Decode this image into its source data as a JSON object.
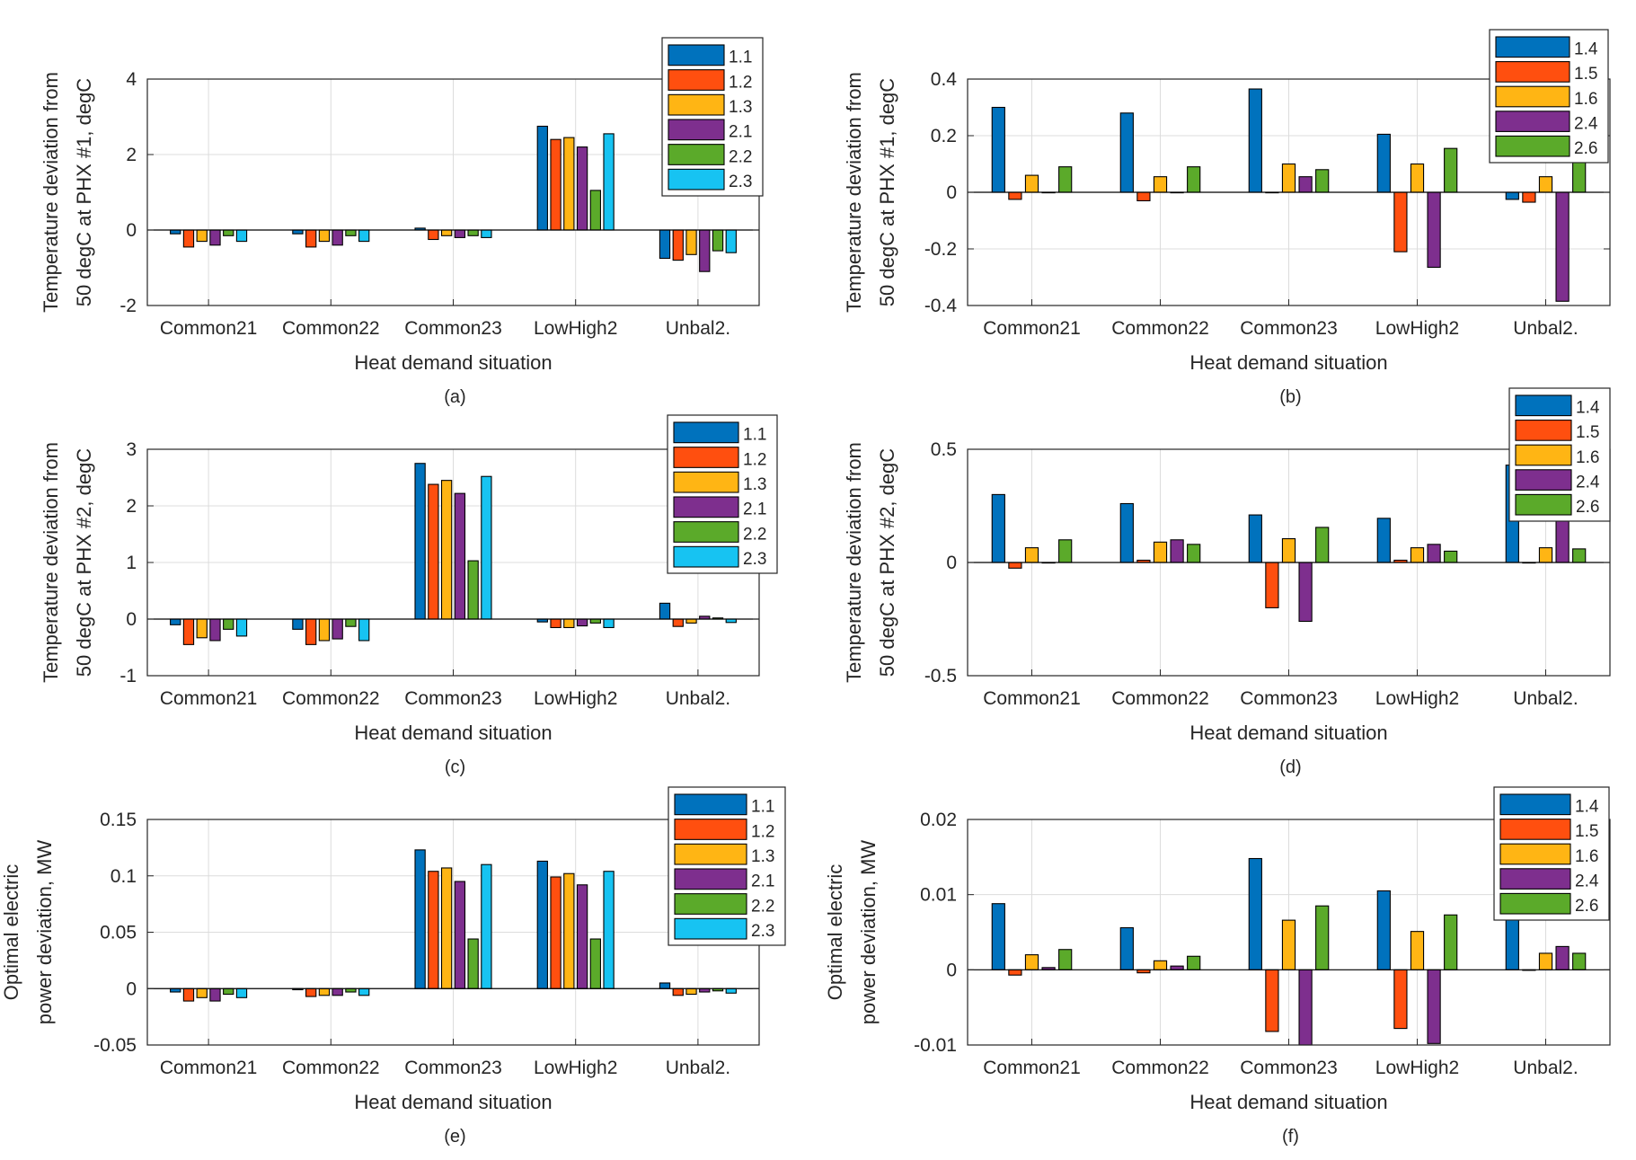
{
  "colors": {
    "1.1": "#0072BD",
    "1.2": "#FF4F0F",
    "1.3": "#FFB514",
    "2.1": "#7E2F8E",
    "2.2": "#5BAA2A",
    "2.3": "#17C3F2",
    "1.4": "#0072BD",
    "1.5": "#FF4F0F",
    "1.6": "#FFB514",
    "2.4": "#7E2F8E",
    "2.6": "#5BAA2A"
  },
  "chart_data": [
    {
      "type": "bar",
      "caption": "(a)",
      "xlabel": "Heat demand situation",
      "ylabel_line1": "Temperature deviation from",
      "ylabel_line2": "50 degC at PHX #1, degC",
      "categories": [
        "Common21",
        "Common22",
        "Common23",
        "LowHigh2",
        "Unbal2."
      ],
      "ylim": [
        -2,
        4
      ],
      "yticks": [
        -2,
        0,
        2,
        4
      ],
      "ytick_labels": [
        "-2",
        "0",
        "2",
        "4"
      ],
      "grid": true,
      "legend_position": "top-right",
      "series": [
        {
          "name": "1.1",
          "values": [
            -0.1,
            -0.1,
            0.05,
            2.75,
            -0.75
          ]
        },
        {
          "name": "1.2",
          "values": [
            -0.45,
            -0.45,
            -0.25,
            2.4,
            -0.8
          ]
        },
        {
          "name": "1.3",
          "values": [
            -0.3,
            -0.3,
            -0.15,
            2.45,
            -0.65
          ]
        },
        {
          "name": "2.1",
          "values": [
            -0.4,
            -0.4,
            -0.2,
            2.2,
            -1.1
          ]
        },
        {
          "name": "2.2",
          "values": [
            -0.15,
            -0.15,
            -0.15,
            1.05,
            -0.55
          ]
        },
        {
          "name": "2.3",
          "values": [
            -0.3,
            -0.3,
            -0.2,
            2.55,
            -0.6
          ]
        }
      ]
    },
    {
      "type": "bar",
      "caption": "(b)",
      "xlabel": "Heat demand situation",
      "ylabel_line1": "Temperature deviation from",
      "ylabel_line2": "50 degC at PHX #1, degC",
      "categories": [
        "Common21",
        "Common22",
        "Common23",
        "LowHigh2",
        "Unbal2."
      ],
      "ylim": [
        -0.4,
        0.4
      ],
      "yticks": [
        -0.4,
        -0.2,
        0,
        0.2,
        0.4
      ],
      "ytick_labels": [
        "-0.4",
        "-0.2",
        "0",
        "0.2",
        "0.4"
      ],
      "grid": true,
      "legend_position": "top-right",
      "series": [
        {
          "name": "1.4",
          "values": [
            0.3,
            0.28,
            0.365,
            0.205,
            -0.025
          ]
        },
        {
          "name": "1.5",
          "values": [
            -0.025,
            -0.03,
            0.0,
            -0.21,
            -0.035
          ]
        },
        {
          "name": "1.6",
          "values": [
            0.06,
            0.055,
            0.1,
            0.1,
            0.055
          ]
        },
        {
          "name": "2.4",
          "values": [
            0.0,
            0.0,
            0.055,
            -0.265,
            -0.385
          ]
        },
        {
          "name": "2.6",
          "values": [
            0.09,
            0.09,
            0.08,
            0.155,
            0.115
          ]
        }
      ]
    },
    {
      "type": "bar",
      "caption": "(c)",
      "xlabel": "Heat demand situation",
      "ylabel_line1": "Temperature deviation from",
      "ylabel_line2": "50 degC at PHX #2, degC",
      "categories": [
        "Common21",
        "Common22",
        "Common23",
        "LowHigh2",
        "Unbal2."
      ],
      "ylim": [
        -1,
        3
      ],
      "yticks": [
        -1,
        0,
        1,
        2,
        3
      ],
      "ytick_labels": [
        "-1",
        "0",
        "1",
        "2",
        "3"
      ],
      "grid": true,
      "legend_position": "top-right",
      "series": [
        {
          "name": "1.1",
          "values": [
            -0.1,
            -0.18,
            2.75,
            -0.05,
            0.28
          ]
        },
        {
          "name": "1.2",
          "values": [
            -0.45,
            -0.45,
            2.38,
            -0.15,
            -0.13
          ]
        },
        {
          "name": "1.3",
          "values": [
            -0.33,
            -0.38,
            2.45,
            -0.15,
            -0.07
          ]
        },
        {
          "name": "2.1",
          "values": [
            -0.38,
            -0.35,
            2.22,
            -0.12,
            0.05
          ]
        },
        {
          "name": "2.2",
          "values": [
            -0.18,
            -0.13,
            1.03,
            -0.07,
            0.02
          ]
        },
        {
          "name": "2.3",
          "values": [
            -0.3,
            -0.38,
            2.52,
            -0.15,
            -0.06
          ]
        }
      ]
    },
    {
      "type": "bar",
      "caption": "(d)",
      "xlabel": "Heat demand situation",
      "ylabel_line1": "Temperature deviation from",
      "ylabel_line2": "50 degC at PHX #2, degC",
      "categories": [
        "Common21",
        "Common22",
        "Common23",
        "LowHigh2",
        "Unbal2."
      ],
      "ylim": [
        -0.5,
        0.5
      ],
      "yticks": [
        -0.5,
        0,
        0.5
      ],
      "ytick_labels": [
        "-0.5",
        "0",
        "0.5"
      ],
      "grid": true,
      "legend_position": "top-right",
      "series": [
        {
          "name": "1.4",
          "values": [
            0.3,
            0.26,
            0.21,
            0.195,
            0.43
          ]
        },
        {
          "name": "1.5",
          "values": [
            -0.025,
            0.01,
            -0.2,
            0.01,
            0.0
          ]
        },
        {
          "name": "1.6",
          "values": [
            0.065,
            0.09,
            0.105,
            0.065,
            0.065
          ]
        },
        {
          "name": "2.4",
          "values": [
            0.0,
            0.1,
            -0.26,
            0.08,
            0.2
          ]
        },
        {
          "name": "2.6",
          "values": [
            0.1,
            0.08,
            0.155,
            0.05,
            0.06
          ]
        }
      ]
    },
    {
      "type": "bar",
      "caption": "(e)",
      "xlabel": "Heat demand situation",
      "ylabel_line1": "Optimal electric",
      "ylabel_line2": "power deviation, MW",
      "categories": [
        "Common21",
        "Common22",
        "Common23",
        "LowHigh2",
        "Unbal2."
      ],
      "ylim": [
        -0.05,
        0.15
      ],
      "yticks": [
        -0.05,
        0,
        0.05,
        0.1,
        0.15
      ],
      "ytick_labels": [
        "-0.05",
        "0",
        "0.05",
        "0.1",
        "0.15"
      ],
      "grid": true,
      "legend_position": "top-right",
      "series": [
        {
          "name": "1.1",
          "values": [
            -0.003,
            -0.001,
            0.123,
            0.113,
            0.005
          ]
        },
        {
          "name": "1.2",
          "values": [
            -0.011,
            -0.007,
            0.104,
            0.099,
            -0.006
          ]
        },
        {
          "name": "1.3",
          "values": [
            -0.008,
            -0.006,
            0.107,
            0.102,
            -0.005
          ]
        },
        {
          "name": "2.1",
          "values": [
            -0.011,
            -0.006,
            0.095,
            0.092,
            -0.003
          ]
        },
        {
          "name": "2.2",
          "values": [
            -0.005,
            -0.003,
            0.044,
            0.044,
            -0.002
          ]
        },
        {
          "name": "2.3",
          "values": [
            -0.008,
            -0.006,
            0.11,
            0.104,
            -0.004
          ]
        }
      ]
    },
    {
      "type": "bar",
      "caption": "(f)",
      "xlabel": "Heat demand situation",
      "ylabel_line1": "Optimal electric",
      "ylabel_line2": "power deviation, MW",
      "categories": [
        "Common21",
        "Common22",
        "Common23",
        "LowHigh2",
        "Unbal2."
      ],
      "ylim": [
        -0.01,
        0.02
      ],
      "yticks": [
        -0.01,
        0,
        0.01,
        0.02
      ],
      "ytick_labels": [
        "-0.01",
        "0",
        "0.01",
        "0.02"
      ],
      "grid": true,
      "legend_position": "top-right",
      "series": [
        {
          "name": "1.4",
          "values": [
            0.0088,
            0.0056,
            0.0148,
            0.0105,
            0.011
          ]
        },
        {
          "name": "1.5",
          "values": [
            -0.0007,
            -0.0004,
            -0.0082,
            -0.0078,
            0.0
          ]
        },
        {
          "name": "1.6",
          "values": [
            0.002,
            0.0012,
            0.0066,
            0.0051,
            0.0022
          ]
        },
        {
          "name": "2.4",
          "values": [
            0.0003,
            0.0005,
            -0.0105,
            -0.0098,
            0.0031
          ]
        },
        {
          "name": "2.6",
          "values": [
            0.0027,
            0.0018,
            0.0085,
            0.0073,
            0.0022
          ]
        }
      ]
    }
  ]
}
